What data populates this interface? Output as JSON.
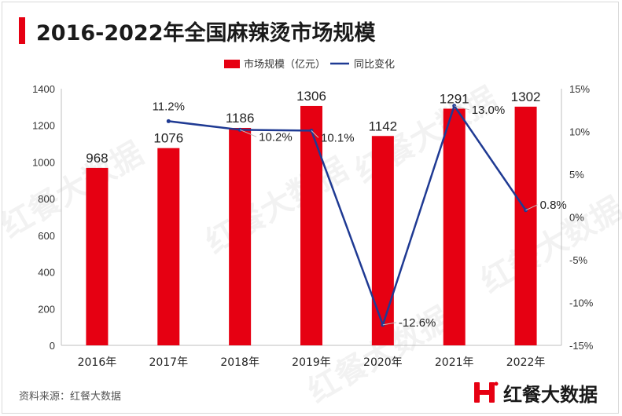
{
  "title": "2016-2022年全国麻辣烫市场规模",
  "source": "资料来源：红餐大数据",
  "brand": "红餐大数据",
  "watermark": "红餐大数据",
  "colors": {
    "bar": "#e60012",
    "line": "#1f3a93",
    "accent": "#e60012"
  },
  "chart_data": {
    "type": "bar",
    "categories": [
      "2016年",
      "2017年",
      "2018年",
      "2019年",
      "2020年",
      "2021年",
      "2022年"
    ],
    "series": [
      {
        "name": "市场规模（亿元）",
        "type": "bar",
        "axis": "left",
        "values": [
          968,
          1076,
          1186,
          1306,
          1142,
          1291,
          1302
        ]
      },
      {
        "name": "同比变化",
        "type": "line",
        "axis": "right",
        "values": [
          null,
          11.2,
          10.2,
          10.1,
          -12.6,
          13.0,
          0.8
        ]
      }
    ],
    "bar_labels": [
      "968",
      "1076",
      "1186",
      "1306",
      "1142",
      "1291",
      "1302"
    ],
    "line_labels": [
      "",
      "11.2%",
      "10.2%",
      "10.1%",
      "-12.6%",
      "13.0%",
      "0.8%"
    ],
    "y_left": {
      "ylim": [
        0,
        1400
      ],
      "ticks": [
        "0",
        "200",
        "400",
        "600",
        "800",
        "1000",
        "1200",
        "1400"
      ]
    },
    "y_right": {
      "ylim": [
        -15,
        15
      ],
      "ticks": [
        "-15%",
        "-10%",
        "-5%",
        "0%",
        "5%",
        "10%",
        "15%"
      ]
    },
    "legend_position": "top-center",
    "grid": false
  }
}
